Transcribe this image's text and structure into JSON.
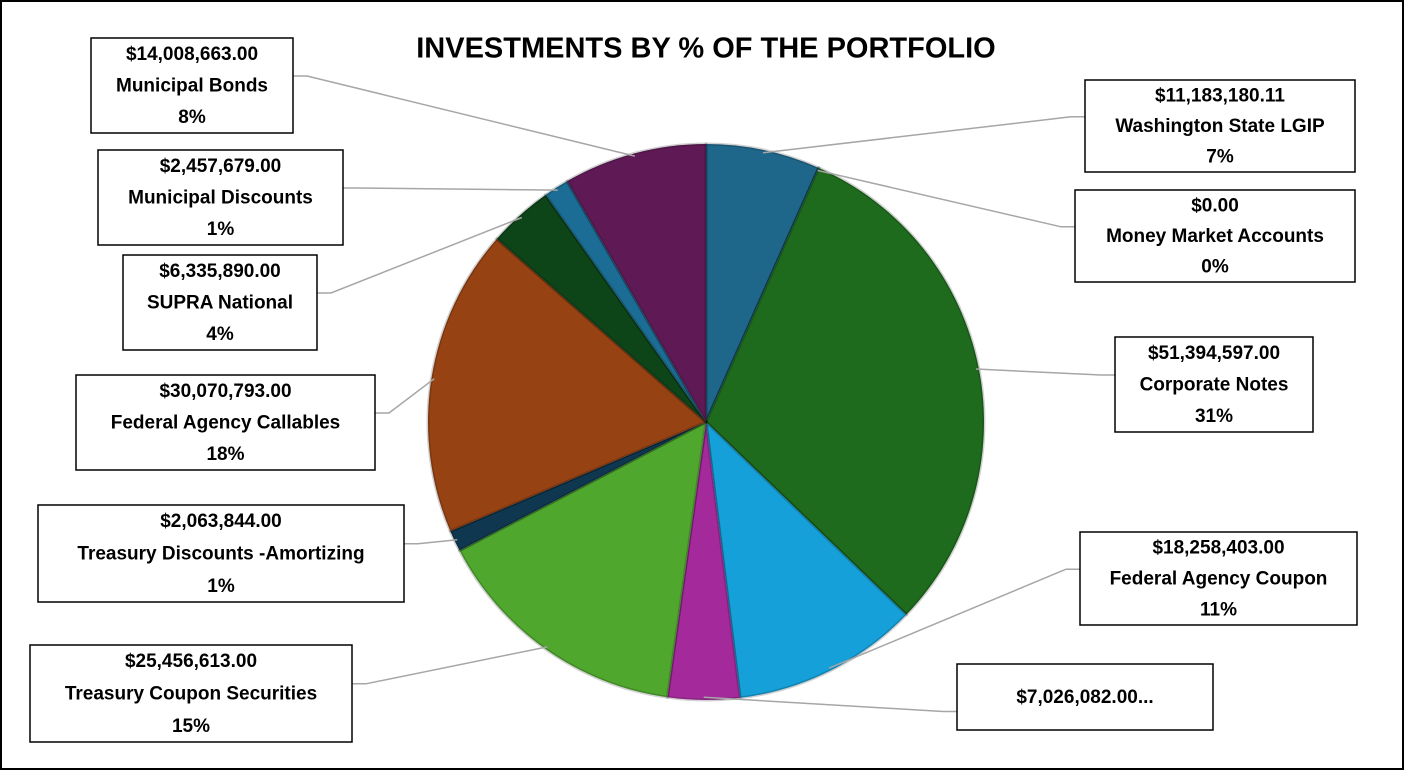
{
  "chart_data": {
    "type": "pie",
    "title": "INVESTMENTS BY % OF THE PORTFOLIO",
    "categories": [
      "Washington State LGIP",
      "Money Market Accounts",
      "Corporate Notes",
      "Federal Agency Coupon",
      null,
      "Treasury Coupon Securities",
      "Treasury Discounts -Amortizing",
      "Federal Agency Callables",
      "SUPRA National",
      "Municipal Discounts",
      "Municipal Bonds"
    ],
    "values": [
      11183180.11,
      0,
      51394597,
      18258403,
      7026082,
      25456613,
      2063844,
      30070793,
      6335890,
      2457679,
      14008663
    ],
    "value_labels": [
      "$11,183,180.11",
      "$0.00",
      "$51,394,597.00",
      "$18,258,403.00",
      "$7,026,082.00...",
      "$25,456,613.00",
      "$2,063,844.00",
      "$30,070,793.00",
      "$6,335,890.00",
      "$2,457,679.00",
      "$14,008,663.00"
    ],
    "percent_labels": [
      "7%",
      "0%",
      "31%",
      "11%",
      null,
      "15%",
      "1%",
      "18%",
      "4%",
      "1%",
      "8%"
    ],
    "colors": [
      "#1f678a",
      "#1b5f7c",
      "#1e6b1e",
      "#16a0d9",
      "#a42a9c",
      "#4fa72e",
      "#0f3850",
      "#974213",
      "#0d4418",
      "#1c6d95",
      "#5f1a56"
    ]
  }
}
